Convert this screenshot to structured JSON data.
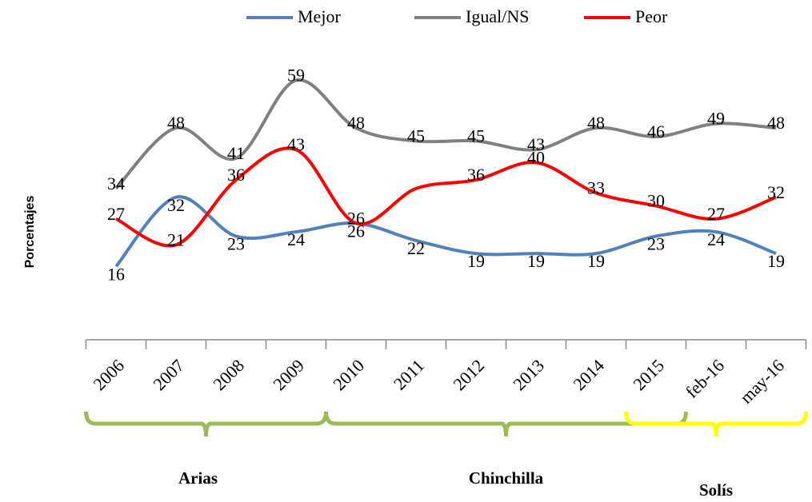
{
  "chart_data": {
    "type": "line",
    "y_label": "Porcentajes",
    "categories": [
      "2006",
      "2007",
      "2008",
      "2009",
      "2010",
      "2011",
      "2012",
      "2013",
      "2014",
      "2015",
      "feb-16",
      "may-16"
    ],
    "series": [
      {
        "name": "Mejor",
        "color": "#4f81bd",
        "values": [
          16,
          32,
          23,
          24,
          26,
          22,
          19,
          19,
          19,
          23,
          24,
          19
        ]
      },
      {
        "name": "Igual/NS",
        "color": "#808080",
        "values": [
          34,
          48,
          41,
          59,
          48,
          45,
          45,
          43,
          48,
          46,
          49,
          48
        ]
      },
      {
        "name": "Peor",
        "color": "#ff0000",
        "values": [
          27,
          21,
          36,
          43,
          26,
          34,
          36,
          40,
          33,
          30,
          27,
          32
        ],
        "value_labels": [
          "27",
          "21",
          "36",
          "43",
          "26",
          null,
          "36",
          "40",
          "33",
          "30",
          "27",
          "32"
        ]
      }
    ],
    "ylim": [
      0,
      70
    ],
    "groups": [
      {
        "label": "Arias",
        "color": "#9bbb59",
        "start": "2006",
        "end": "2009"
      },
      {
        "label": "Chinchilla",
        "color": "#9bbb59",
        "start": "2010",
        "end": "2015"
      },
      {
        "label": "Solís",
        "color": "#ffff00",
        "start": "2015",
        "end": "may-16"
      }
    ]
  }
}
